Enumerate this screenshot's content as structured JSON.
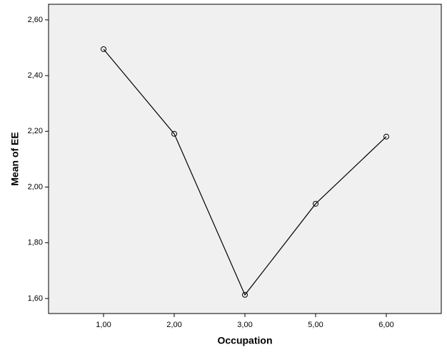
{
  "chart_data": {
    "type": "line",
    "x_label": "Occupation",
    "y_label": "Mean of EE",
    "categories": [
      "1,00",
      "2,00",
      "3,00",
      "5,00",
      "6,00"
    ],
    "values": [
      2.495,
      2.191,
      1.613,
      1.94,
      2.181
    ],
    "color": "#000000",
    "ylim": [
      1.546,
      2.656
    ],
    "yticks": [
      {
        "value": 1.6,
        "label": "1,60"
      },
      {
        "value": 1.8,
        "label": "1,80"
      },
      {
        "value": 2.0,
        "label": "2,00"
      },
      {
        "value": 2.2,
        "label": "2,20"
      },
      {
        "value": 2.4,
        "label": "2,40"
      },
      {
        "value": 2.6,
        "label": "2,60"
      }
    ],
    "grid": false
  }
}
